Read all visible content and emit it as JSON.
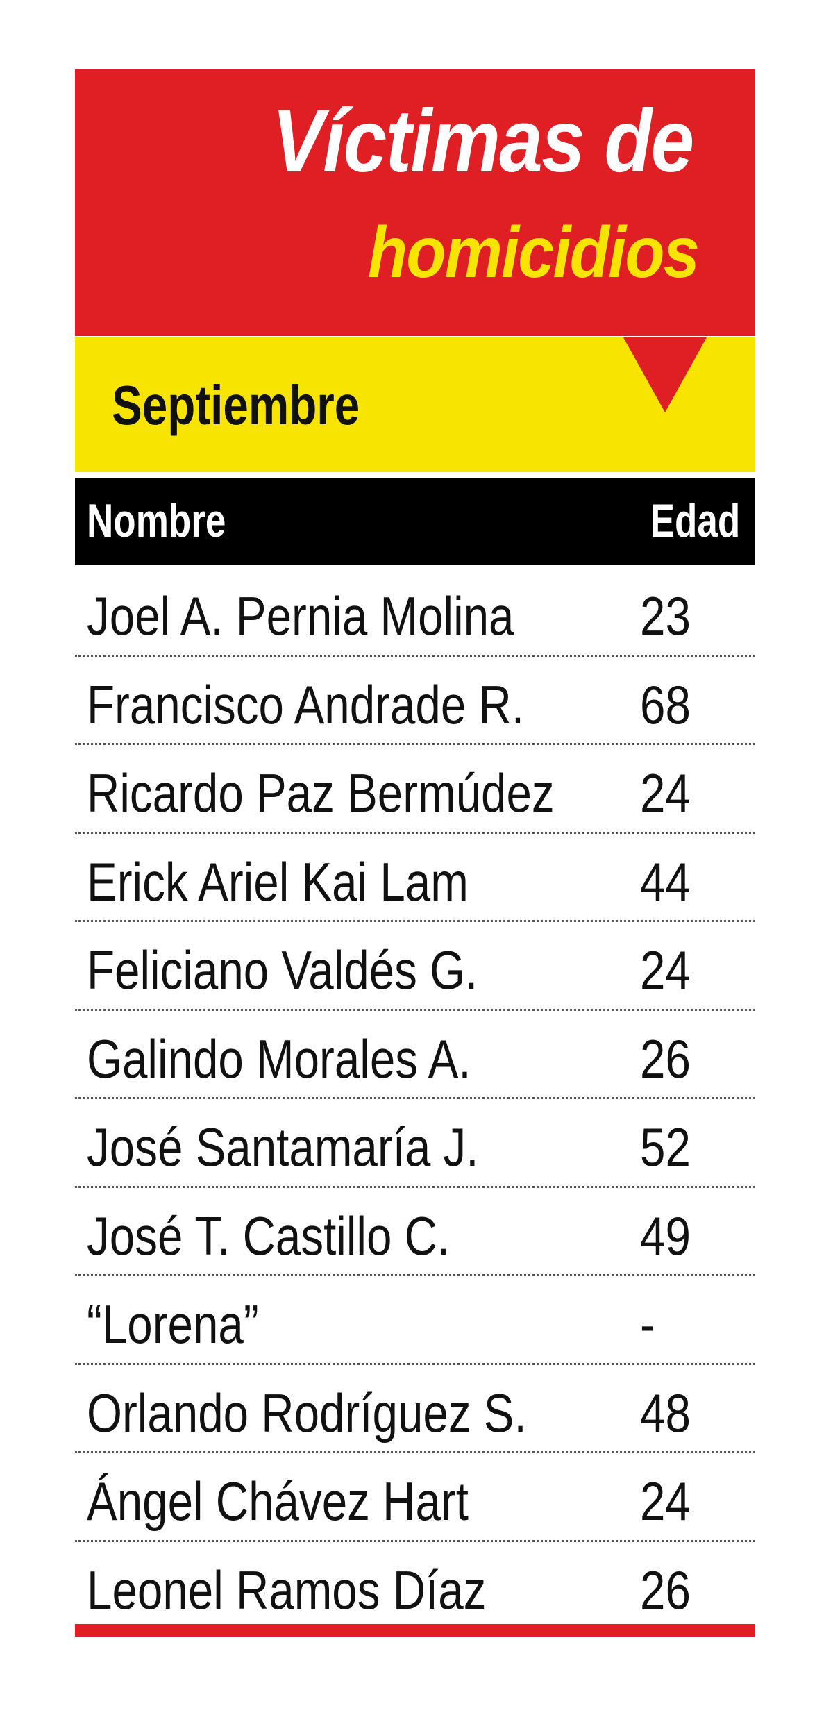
{
  "title": {
    "line1": "Víctimas de",
    "line2": "homicidios"
  },
  "month": "Septiembre",
  "colors": {
    "red": "#df1f24",
    "yellow": "#f7e400",
    "black": "#000000"
  },
  "table": {
    "headers": {
      "name": "Nombre",
      "age": "Edad"
    },
    "rows": [
      {
        "name": "Joel A. Pernia Molina",
        "age": "23"
      },
      {
        "name": "Francisco Andrade R.",
        "age": "68"
      },
      {
        "name": "Ricardo Paz Bermúdez",
        "age": "24"
      },
      {
        "name": "Erick Ariel Kai Lam",
        "age": "44"
      },
      {
        "name": "Feliciano Valdés G.",
        "age": "24"
      },
      {
        "name": "Galindo Morales A.",
        "age": "26"
      },
      {
        "name": "José Santamaría J.",
        "age": "52"
      },
      {
        "name": "José T. Castillo C.",
        "age": "49"
      },
      {
        "name": "“Lorena”",
        "age": "-"
      },
      {
        "name": "Orlando Rodríguez S.",
        "age": "48"
      },
      {
        "name": "Ángel Chávez Hart",
        "age": "24"
      },
      {
        "name": "Leonel Ramos Díaz",
        "age": "26"
      }
    ]
  }
}
